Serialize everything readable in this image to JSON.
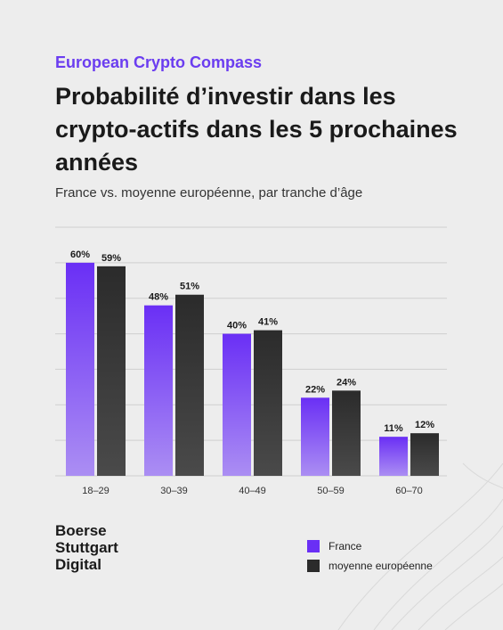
{
  "kicker": "European Crypto Compass",
  "title": "Probabilité d’investir dans les crypto-actifs dans les 5 prochaines années",
  "subtitle": "France vs. moyenne européenne, par tranche d’âge",
  "logo": [
    "Boerse",
    "Stuttgart",
    "Digital"
  ],
  "colors": {
    "france_top": "#6a2ff5",
    "france_bottom": "#ab8ef3",
    "europe_top": "#2b2b2b",
    "europe_bottom": "#4a4a4a",
    "grid": "#cfcfcf",
    "kicker": "#6b3df0"
  },
  "chart_data": {
    "type": "bar",
    "categories": [
      "18–29",
      "30–39",
      "40–49",
      "50–59",
      "60–70"
    ],
    "series": [
      {
        "name": "France",
        "values": [
          60,
          48,
          40,
          22,
          11
        ],
        "labels": [
          "60%",
          "48%",
          "40%",
          "22%",
          "11%"
        ]
      },
      {
        "name": "moyenne européenne",
        "values": [
          59,
          51,
          41,
          24,
          12
        ],
        "labels": [
          "59%",
          "51%",
          "41%",
          "24%",
          "12%"
        ]
      }
    ],
    "ylim": [
      0,
      70
    ],
    "grid": true,
    "legend_position": "bottom-right"
  }
}
